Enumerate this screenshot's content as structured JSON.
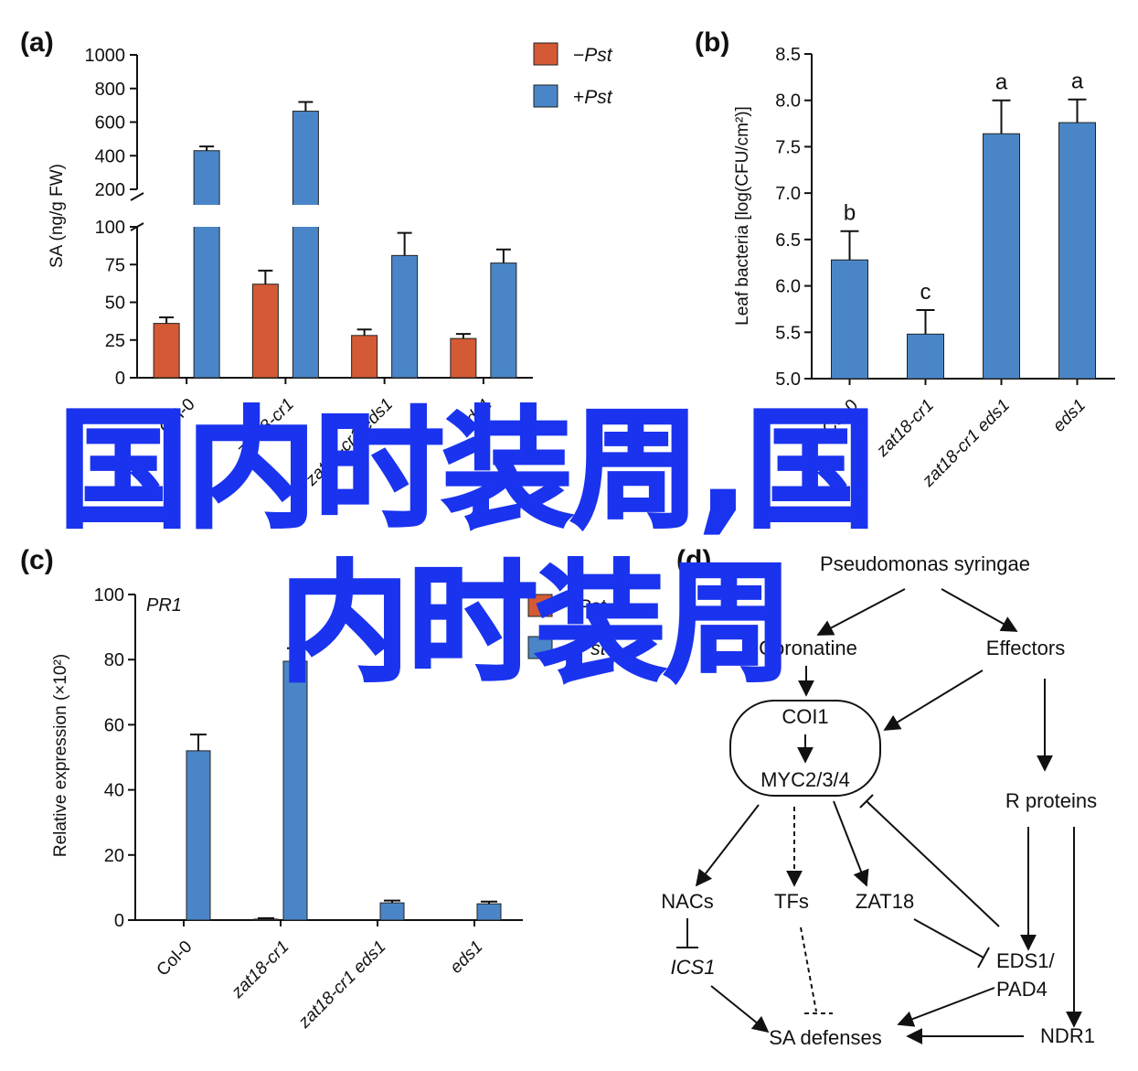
{
  "panels": {
    "a": {
      "label": "a",
      "chart_data": {
        "type": "bar",
        "ylabel": "SA (ng/g FW)",
        "categories": [
          "Col-0",
          "zat18-cr1",
          "zat18-cr1 eds1",
          "eds1"
        ],
        "yticks_lower": [
          "0",
          "25",
          "50",
          "75",
          "100"
        ],
        "yticks_upper": [
          "200",
          "400",
          "600",
          "800",
          "1000"
        ],
        "ylim": [
          0,
          1000
        ],
        "axis_break": [
          100,
          200
        ],
        "legend_position": "top-right",
        "series": [
          {
            "name": "−Pst",
            "legend_sign": "−",
            "legend_italic": "Pst",
            "color": "#d35a35",
            "values": [
              36,
              62,
              28,
              26
            ],
            "errors": [
              4,
              9,
              4,
              3
            ]
          },
          {
            "name": "+Pst",
            "legend_sign": "+",
            "legend_italic": "Pst",
            "color": "#4a86c7",
            "values": [
              430,
              665,
              81,
              76
            ],
            "errors": [
              25,
              55,
              15,
              9
            ]
          }
        ]
      }
    },
    "b": {
      "label": "b",
      "chart_data": {
        "type": "bar",
        "ylabel": "Leaf bacteria [log(CFU/cm²)]",
        "categories": [
          "Col-0",
          "zat18-cr1",
          "zat18-cr1 eds1",
          "eds1"
        ],
        "yticks": [
          "5.0",
          "5.5",
          "6.0",
          "6.5",
          "7.0",
          "7.5",
          "8.0",
          "8.5"
        ],
        "ylim": [
          5.0,
          8.5
        ],
        "series": [
          {
            "name": "",
            "color": "#4a86c7",
            "values": [
              6.28,
              5.48,
              7.64,
              7.76
            ],
            "errors": [
              0.31,
              0.26,
              0.36,
              0.25
            ],
            "letters": [
              "b",
              "c",
              "a",
              "a"
            ]
          }
        ]
      }
    },
    "c": {
      "label": "c",
      "chart_data": {
        "type": "bar",
        "title": "PR1",
        "ylabel": "Relative expression (×10²)",
        "categories": [
          "Col-0",
          "zat18-cr1",
          "zat18-cr1 eds1",
          "eds1"
        ],
        "yticks": [
          "0",
          "20",
          "40",
          "60",
          "80",
          "100"
        ],
        "ylim": [
          0,
          100
        ],
        "legend_position": "top-right",
        "series": [
          {
            "name": "−Pst",
            "color": "#d35a35",
            "values": [
              0,
              0.3,
              0,
              0
            ],
            "errors": [
              0,
              0.3,
              0,
              0
            ]
          },
          {
            "name": "+Pst",
            "color": "#4a86c7",
            "values": [
              52,
              79.5,
              5.3,
              5.0
            ],
            "errors": [
              5,
              4,
              0.7,
              0.7
            ]
          }
        ]
      }
    },
    "d": {
      "label": "d",
      "nodes": {
        "pseudomonas": "Pseudomonas syringae",
        "coronatine": "Coronatine",
        "effectors": "Effectors",
        "coi1": "COI1",
        "myc": "MYC2/3/4",
        "r_proteins": "R proteins",
        "nacs": "NACs",
        "tfs": "TFs",
        "zat18": "ZAT18",
        "ics1": "ICS1",
        "eds1_line1": "EDS1/",
        "eds1_line2": "PAD4",
        "sa_defenses": "SA defenses",
        "ndr1": "NDR1"
      }
    }
  },
  "watermark": {
    "line1": "国内时装周,国",
    "line2": "内时装周",
    "color": "#1a33ee"
  }
}
